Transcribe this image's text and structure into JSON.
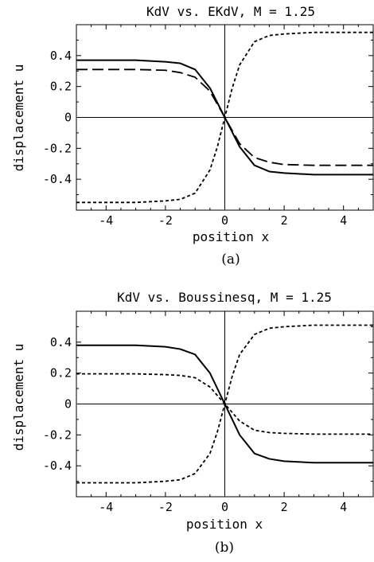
{
  "chart_data": [
    {
      "type": "line",
      "title": "KdV vs. EKdV, M = 1.25",
      "xlabel": "position x",
      "ylabel": "displacement u",
      "xlim": [
        -5,
        5
      ],
      "ylim": [
        -0.6,
        0.6
      ],
      "xticks": [
        -4,
        -2,
        0,
        2,
        4
      ],
      "xtick_labels": [
        "-4",
        "-2",
        "0",
        "2",
        "4"
      ],
      "yticks": [
        0.4,
        0.2,
        0,
        -0.2,
        -0.4
      ],
      "ytick_labels": [
        "0.4",
        "0.2",
        "0",
        "-0.2",
        "-0.4"
      ],
      "caption": "(a)",
      "series": [
        {
          "style": "solid",
          "color": "#000000",
          "x": [
            -5,
            -3,
            -2,
            -1.5,
            -1,
            -0.5,
            0,
            0.5,
            1,
            1.5,
            2,
            3,
            5
          ],
          "y": [
            0.37,
            0.37,
            0.36,
            0.35,
            0.31,
            0.19,
            0,
            -0.19,
            -0.31,
            -0.35,
            -0.36,
            -0.37,
            -0.37
          ]
        },
        {
          "style": "long-dash",
          "color": "#000000",
          "x": [
            -5,
            -3,
            -2,
            -1.5,
            -1,
            -0.5,
            0,
            0.5,
            1,
            1.5,
            2,
            3,
            5
          ],
          "y": [
            0.31,
            0.31,
            0.305,
            0.29,
            0.26,
            0.17,
            0,
            -0.17,
            -0.26,
            -0.29,
            -0.305,
            -0.31,
            -0.31
          ]
        },
        {
          "style": "short-dash",
          "color": "#000000",
          "x": [
            -5,
            -3,
            -2,
            -1.5,
            -1,
            -0.5,
            -0.25,
            0,
            0.25,
            0.5,
            1,
            1.5,
            2,
            3,
            5
          ],
          "y": [
            -0.55,
            -0.55,
            -0.54,
            -0.53,
            -0.49,
            -0.34,
            -0.19,
            0,
            0.19,
            0.34,
            0.49,
            0.53,
            0.54,
            0.55,
            0.55
          ]
        }
      ]
    },
    {
      "type": "line",
      "title": "KdV vs. Boussinesq, M = 1.25",
      "xlabel": "position x",
      "ylabel": "displacement u",
      "xlim": [
        -5,
        5
      ],
      "ylim": [
        -0.6,
        0.6
      ],
      "xticks": [
        -4,
        -2,
        0,
        2,
        4
      ],
      "xtick_labels": [
        "-4",
        "-2",
        "0",
        "2",
        "4"
      ],
      "yticks": [
        0.4,
        0.2,
        0,
        -0.2,
        -0.4
      ],
      "ytick_labels": [
        "0.4",
        "0.2",
        "0",
        "-0.2",
        "-0.4"
      ],
      "caption": "(b)",
      "series": [
        {
          "style": "solid",
          "color": "#000000",
          "x": [
            -5,
            -3,
            -2,
            -1.5,
            -1,
            -0.5,
            0,
            0.5,
            1,
            1.5,
            2,
            3,
            5
          ],
          "y": [
            0.38,
            0.38,
            0.37,
            0.355,
            0.32,
            0.2,
            0,
            -0.2,
            -0.32,
            -0.355,
            -0.37,
            -0.38,
            -0.38
          ]
        },
        {
          "style": "short-dash",
          "color": "#000000",
          "x": [
            -5,
            -3,
            -2,
            -1.5,
            -1,
            -0.5,
            0,
            0.5,
            1,
            1.5,
            2,
            3,
            5
          ],
          "y": [
            0.195,
            0.195,
            0.19,
            0.185,
            0.17,
            0.11,
            0,
            -0.11,
            -0.17,
            -0.185,
            -0.19,
            -0.195,
            -0.195
          ]
        },
        {
          "style": "short-dash",
          "color": "#000000",
          "x": [
            -5,
            -3,
            -2,
            -1.5,
            -1,
            -0.5,
            -0.25,
            0,
            0.25,
            0.5,
            1,
            1.5,
            2,
            3,
            5
          ],
          "y": [
            -0.51,
            -0.51,
            -0.5,
            -0.49,
            -0.45,
            -0.32,
            -0.18,
            0,
            0.18,
            0.32,
            0.45,
            0.49,
            0.5,
            0.51,
            0.51
          ]
        }
      ]
    }
  ]
}
